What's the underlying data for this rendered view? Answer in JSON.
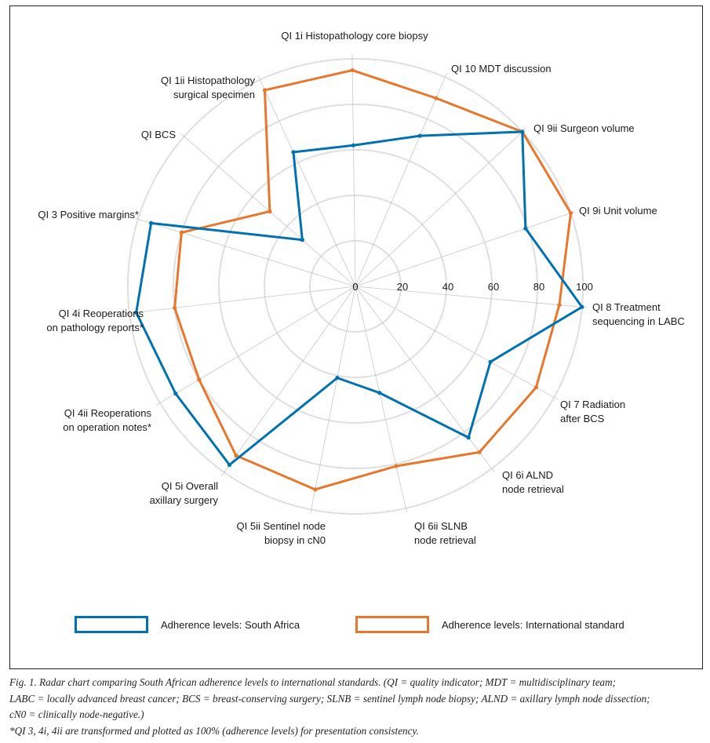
{
  "chart_data": {
    "type": "radar",
    "title": "",
    "axes": [
      {
        "label": [
          "QI 1i Histopathology core biopsy"
        ],
        "anchor": "middle"
      },
      {
        "label": [
          "QI 10 MDT discussion"
        ],
        "anchor": "start"
      },
      {
        "label": [
          "QI 9ii Surgeon volume"
        ],
        "anchor": "start"
      },
      {
        "label": [
          "QI 9i Unit volume"
        ],
        "anchor": "start"
      },
      {
        "label": [
          "QI 8 Treatment",
          "sequencing in LABC"
        ],
        "anchor": "start"
      },
      {
        "label": [
          "QI 7 Radiation",
          "after BCS"
        ],
        "anchor": "start"
      },
      {
        "label": [
          "QI 6i ALND",
          "node retrieval"
        ],
        "anchor": "start"
      },
      {
        "label": [
          "QI 6ii SLNB",
          "node retrieval"
        ],
        "anchor": "start"
      },
      {
        "label": [
          "QI 5ii Sentinel node",
          "biopsy in cN0"
        ],
        "anchor": "end"
      },
      {
        "label": [
          "QI 5i Overall",
          "axillary surgery"
        ],
        "anchor": "end"
      },
      {
        "label": [
          "QI 4ii Reoperations",
          "on operation notes*"
        ],
        "anchor": "end"
      },
      {
        "label": [
          "QI 4i Reoperations",
          "on pathology reports*"
        ],
        "anchor": "end"
      },
      {
        "label": [
          "QI 3 Positive margins*"
        ],
        "anchor": "end"
      },
      {
        "label": [
          "QI BCS"
        ],
        "anchor": "end"
      },
      {
        "label": [
          "QI 1ii Histopathology",
          "surgical specimen"
        ],
        "anchor": "end"
      }
    ],
    "radial_ticks": [
      "0",
      "20",
      "40",
      "60",
      "80",
      "100"
    ],
    "rlim": [
      0,
      100
    ],
    "grid": true,
    "legend_position": "bottom",
    "series": [
      {
        "name": "Adherence levels: South Africa",
        "color": "#0072b0",
        "values": [
          62,
          72,
          100,
          79,
          100,
          68,
          83,
          48,
          41,
          96,
          92,
          97,
          94,
          31,
          65
        ]
      },
      {
        "name": "Adherence levels: International standard",
        "color": "#e8772e",
        "values": [
          95,
          90,
          100,
          100,
          90,
          91,
          91,
          81,
          91,
          91,
          80,
          80,
          80,
          50,
          95
        ]
      }
    ]
  },
  "legend": {
    "south_africa": "Adherence levels: South Africa",
    "international": "Adherence levels: International standard"
  },
  "caption": {
    "line1": "Fig. 1. Radar chart comparing South African adherence levels to international standards. (QI = quality indicator; MDT = multidisciplinary team;",
    "line2": "LABC = locally advanced breast cancer; BCS = breast-conserving surgery; SLNB = sentinel lymph node biopsy; ALND = axillary lymph node dissection;",
    "line3": "cN0 = clinically node-negative.)",
    "footnote": "*QI 3, 4i, 4ii are transformed and plotted as 100% (adherence levels) for presentation consistency."
  }
}
